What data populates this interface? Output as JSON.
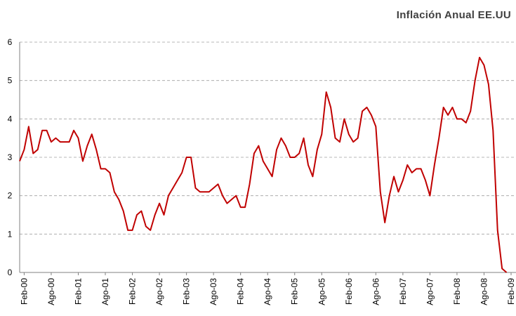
{
  "chart_data": {
    "type": "line",
    "title": "Inflación Anual EE.UU",
    "categories": [
      null,
      "Feb-00",
      null,
      null,
      null,
      null,
      null,
      "Ago-00",
      null,
      null,
      null,
      null,
      null,
      "Feb-01",
      null,
      null,
      null,
      null,
      null,
      "Ago-01",
      null,
      null,
      null,
      null,
      null,
      "Feb-02",
      null,
      null,
      null,
      null,
      null,
      "Ago-02",
      null,
      null,
      null,
      null,
      null,
      "Feb-03",
      null,
      null,
      null,
      null,
      null,
      "Ago-03",
      null,
      null,
      null,
      null,
      null,
      "Feb-04",
      null,
      null,
      null,
      null,
      null,
      "Ago-04",
      null,
      null,
      null,
      null,
      null,
      "Feb-05",
      null,
      null,
      null,
      null,
      null,
      "Ago-05",
      null,
      null,
      null,
      null,
      null,
      "Feb-06",
      null,
      null,
      null,
      null,
      null,
      "Ago-06",
      null,
      null,
      null,
      null,
      null,
      "Feb-07",
      null,
      null,
      null,
      null,
      null,
      "Ago-07",
      null,
      null,
      null,
      null,
      null,
      "Feb-08",
      null,
      null,
      null,
      null,
      null,
      "Ago-08",
      null,
      null,
      null,
      null,
      null,
      "Feb-09"
    ],
    "values": [
      2.9,
      3.2,
      3.8,
      3.1,
      3.2,
      3.7,
      3.7,
      3.4,
      3.5,
      3.4,
      3.4,
      3.4,
      3.7,
      3.5,
      2.9,
      3.3,
      3.6,
      3.2,
      2.7,
      2.7,
      2.6,
      2.1,
      1.9,
      1.6,
      1.1,
      1.1,
      1.5,
      1.6,
      1.2,
      1.1,
      1.5,
      1.8,
      1.5,
      2.0,
      2.2,
      2.4,
      2.6,
      3.0,
      3.0,
      2.2,
      2.1,
      2.1,
      2.1,
      2.2,
      2.3,
      2.0,
      1.8,
      1.9,
      2.0,
      1.7,
      1.7,
      2.3,
      3.1,
      3.3,
      2.9,
      2.7,
      2.5,
      3.2,
      3.5,
      3.3,
      3.0,
      3.0,
      3.1,
      3.5,
      2.8,
      2.5,
      3.2,
      3.6,
      4.7,
      4.3,
      3.5,
      3.4,
      4.0,
      3.6,
      3.4,
      3.5,
      4.2,
      4.3,
      4.1,
      3.8,
      2.1,
      1.3,
      2.0,
      2.5,
      2.1,
      2.4,
      2.8,
      2.6,
      2.7,
      2.7,
      2.4,
      2.0,
      2.8,
      3.5,
      4.3,
      4.1,
      4.3,
      4.0,
      4.0,
      3.9,
      4.2,
      5.0,
      5.6,
      5.4,
      4.9,
      3.7,
      1.1,
      0.1,
      0.0,
      null
    ],
    "color": "#c00000",
    "ylim": [
      0,
      6
    ],
    "yticks": [
      0,
      1,
      2,
      3,
      4,
      5,
      6
    ],
    "grid": true
  }
}
